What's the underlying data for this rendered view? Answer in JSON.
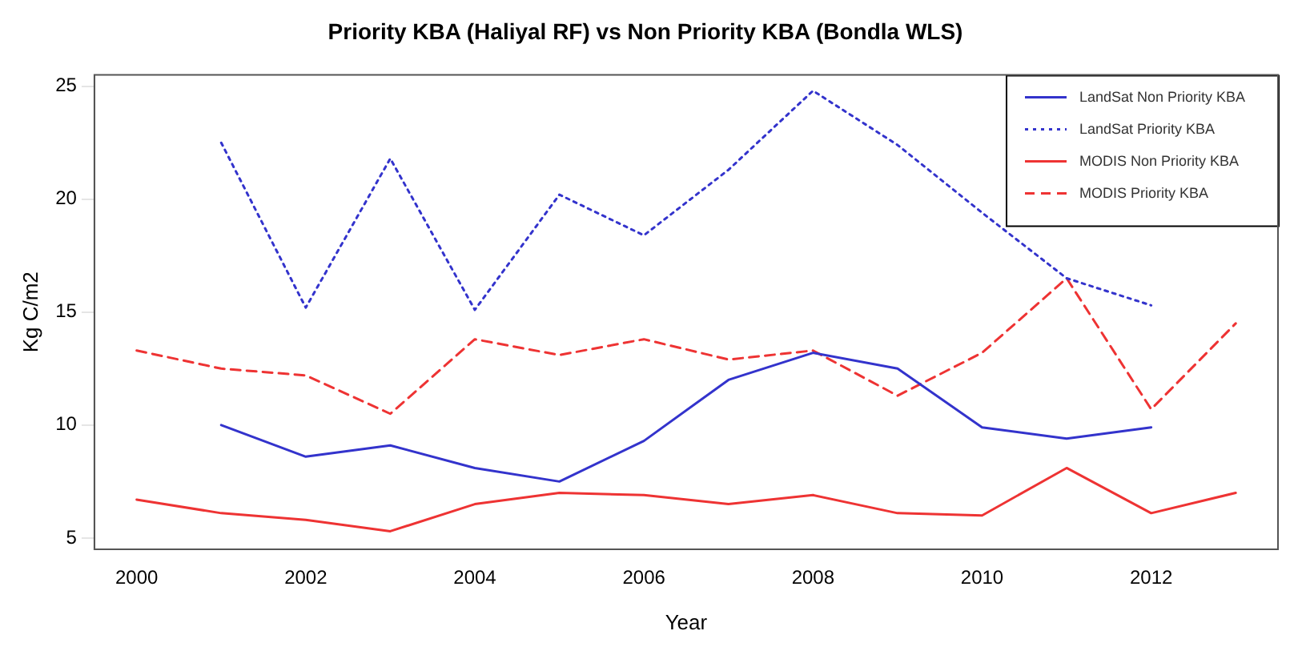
{
  "chart_data": {
    "type": "line",
    "title": "Priority KBA (Haliyal RF) vs Non Priority KBA (Bondla WLS)",
    "xlabel": "Year",
    "ylabel": "Kg C/m2",
    "x": [
      2000,
      2001,
      2002,
      2003,
      2004,
      2005,
      2006,
      2007,
      2008,
      2009,
      2010,
      2011,
      2012,
      2013
    ],
    "xlim": [
      1999.5,
      2013.5
    ],
    "xticks": [
      2000,
      2002,
      2004,
      2006,
      2008,
      2010,
      2012
    ],
    "ylim": [
      4.5,
      25.5
    ],
    "yticks": [
      5,
      10,
      15,
      20,
      25
    ],
    "grid": false,
    "legend": "top right",
    "marker": "none",
    "series": [
      {
        "name": "LandSat Non Priority KBA",
        "color": "#3333cc",
        "line_style": "solid",
        "values": [
          null,
          10.0,
          8.6,
          9.1,
          8.1,
          7.5,
          9.3,
          12.0,
          13.2,
          12.5,
          9.9,
          9.4,
          9.9,
          null
        ]
      },
      {
        "name": "LandSat Priority KBA",
        "color": "#3333cc",
        "line_style": "dotted",
        "values": [
          null,
          22.5,
          15.2,
          21.8,
          15.1,
          20.2,
          18.4,
          21.3,
          24.8,
          22.4,
          19.4,
          16.5,
          15.3,
          null
        ]
      },
      {
        "name": "MODIS Non Priority KBA",
        "color": "#ee3333",
        "line_style": "solid",
        "values": [
          6.7,
          6.1,
          5.8,
          5.3,
          6.5,
          7.0,
          6.9,
          6.5,
          6.9,
          6.1,
          6.0,
          8.1,
          6.1,
          7.0
        ]
      },
      {
        "name": "MODIS Priority KBA",
        "color": "#ee3333",
        "line_style": "dashed",
        "values": [
          13.3,
          12.5,
          12.2,
          10.5,
          13.8,
          13.1,
          13.8,
          12.9,
          13.3,
          11.3,
          13.2,
          16.5,
          10.7,
          14.5
        ]
      }
    ]
  }
}
